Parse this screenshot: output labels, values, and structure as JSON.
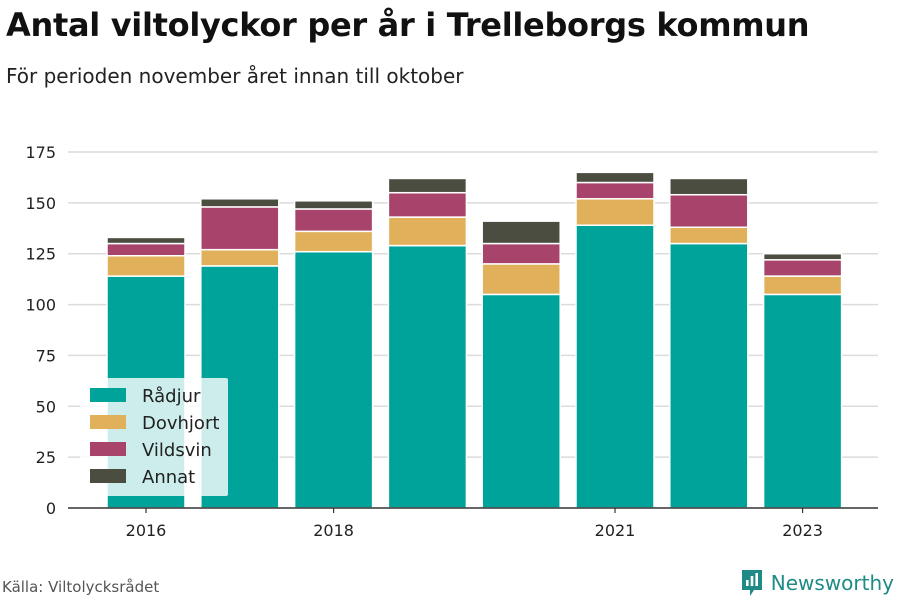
{
  "title": "Antal viltolyckor per år i Trelleborgs kommun",
  "subtitle": "För perioden november året innan till oktober",
  "source": "Källa: Viltolycksrådet",
  "brand": {
    "name": "Newsworthy",
    "icon": "newsworthy-logo-icon",
    "color": "#1f8a86"
  },
  "chart_data": {
    "type": "bar",
    "stacked": true,
    "title": "Antal viltolyckor per år i Trelleborgs kommun",
    "subtitle": "För perioden november året innan till oktober",
    "categories": [
      "2016",
      "2017",
      "2018",
      "2019",
      "2020",
      "2021",
      "2022",
      "2023"
    ],
    "x_tick_labels": [
      "2016",
      "",
      "2018",
      "",
      "",
      "2021",
      "",
      "2023"
    ],
    "series": [
      {
        "name": "Rådjur",
        "color": "#00a39a",
        "values": [
          114,
          119,
          126,
          129,
          105,
          139,
          130,
          105
        ]
      },
      {
        "name": "Dovhjort",
        "color": "#e0b05a",
        "values": [
          10,
          8,
          10,
          14,
          15,
          13,
          8,
          9
        ]
      },
      {
        "name": "Vildsvin",
        "color": "#a8436b",
        "values": [
          6,
          21,
          11,
          12,
          10,
          8,
          16,
          8
        ]
      },
      {
        "name": "Annat",
        "color": "#4a4d3f",
        "values": [
          3,
          4,
          4,
          7,
          11,
          5,
          8,
          3
        ]
      }
    ],
    "ylim": [
      0,
      175
    ],
    "yticks": [
      0,
      25,
      50,
      75,
      100,
      125,
      150,
      175
    ],
    "grid": true,
    "legend_position": "bottom-left",
    "xlabel": "",
    "ylabel": ""
  }
}
